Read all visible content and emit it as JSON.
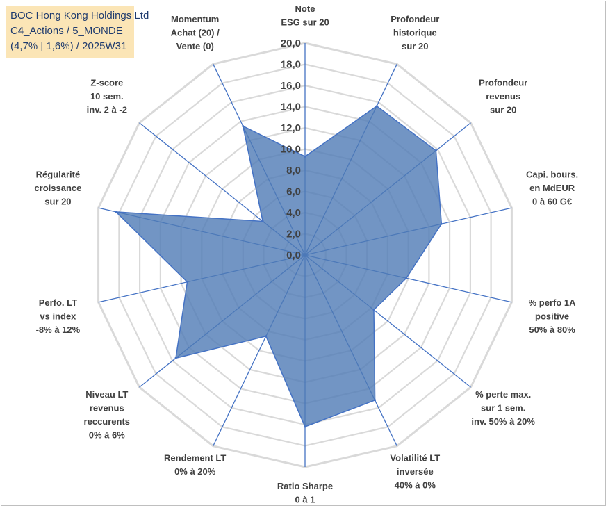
{
  "title_box": {
    "line1": "BOC Hong Kong Holdings Ltd",
    "line2": "C4_Actions / 5_MONDE",
    "line3": "(4,7% | 1,6%) / 2025W31"
  },
  "colors": {
    "fill": "#4f7bb5",
    "stroke": "#4472c4",
    "grid": "#d9d9d9",
    "spoke": "#4472c4",
    "box": "#fbe5b6"
  },
  "chart_data": {
    "type": "radar",
    "title": "BOC Hong Kong Holdings Ltd",
    "rmin": 0,
    "rmax": 20,
    "tick_step": 2,
    "tick_labels": [
      "0,0",
      "2,0",
      "4,0",
      "6,0",
      "8,0",
      "10,0",
      "12,0",
      "14,0",
      "16,0",
      "18,0",
      "20,0"
    ],
    "axes": [
      {
        "label": [
          "Note",
          "ESG sur 20"
        ],
        "value": 9.3
      },
      {
        "label": [
          "Profondeur",
          "historique",
          "sur 20"
        ],
        "value": 15.6
      },
      {
        "label": [
          "Profondeur",
          "revenus",
          "sur 20"
        ],
        "value": 15.8
      },
      {
        "label": [
          "Capi. bours.",
          "en MdEUR",
          "0 à 60 G€"
        ],
        "value": 13.2
      },
      {
        "label": [
          "% perfo 1A",
          "positive",
          "50% à 80%"
        ],
        "value": 9.8
      },
      {
        "label": [
          "% perte max.",
          "sur 1 sem.",
          "inv. 50% à 20%"
        ],
        "value": 8.3
      },
      {
        "label": [
          "Volatilité LT",
          "inversée",
          "40% à 0%"
        ],
        "value": 15.2
      },
      {
        "label": [
          "Ratio Sharpe",
          "0 à 1"
        ],
        "value": 16.2
      },
      {
        "label": [
          "Rendement LT",
          "0% à 20%"
        ],
        "value": 8.5
      },
      {
        "label": [
          "Niveau LT",
          "revenus",
          "reccurents",
          "0% à 6%"
        ],
        "value": 15.6
      },
      {
        "label": [
          "Perfo. LT",
          "vs index",
          "-8% à 12%"
        ],
        "value": 11.4
      },
      {
        "label": [
          "Régularité",
          "croissance",
          "sur 20"
        ],
        "value": 18.3
      },
      {
        "label": [
          "Z-score",
          "10 sem.",
          "inv. 2 à -2"
        ],
        "value": 5.1
      },
      {
        "label": [
          "Momentum",
          "Achat (20) /",
          "Vente (0)"
        ],
        "value": 13.5
      }
    ]
  }
}
